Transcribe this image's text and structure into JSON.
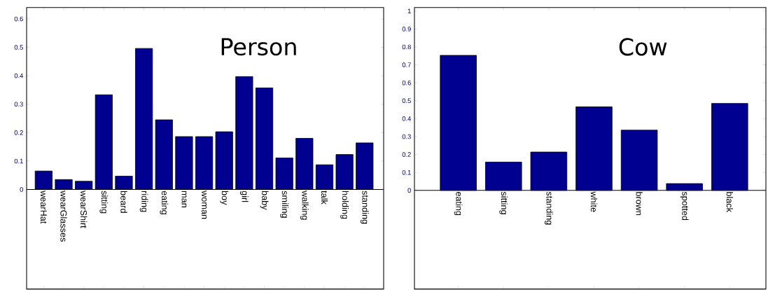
{
  "chart_data": [
    {
      "type": "bar",
      "title": "Person",
      "categories": [
        "wearHat",
        "wearGlasses",
        "wearShirt",
        "sitting",
        "beard",
        "riding",
        "eating",
        "man",
        "woman",
        "boy",
        "girl",
        "baby",
        "smiling",
        "walking",
        "talk",
        "holding",
        "standing"
      ],
      "values": [
        0.065,
        0.035,
        0.029,
        0.333,
        0.047,
        0.496,
        0.245,
        0.186,
        0.186,
        0.203,
        0.397,
        0.357,
        0.111,
        0.18,
        0.087,
        0.123,
        0.164
      ],
      "color": "#000090",
      "ylim": [
        -0.35,
        0.64
      ],
      "yticks": [
        0,
        0.1,
        0.2,
        0.3,
        0.4,
        0.5,
        0.6
      ]
    },
    {
      "type": "bar",
      "title": "Cow",
      "categories": [
        "eating",
        "sitting",
        "standing",
        "white",
        "brown",
        "spotted",
        "black"
      ],
      "values": [
        0.753,
        0.158,
        0.214,
        0.466,
        0.336,
        0.038,
        0.485
      ],
      "color": "#000090",
      "ylim": [
        -0.55,
        1.02
      ],
      "yticks": [
        0,
        0.1,
        0.2,
        0.3,
        0.4,
        0.5,
        0.6,
        0.7,
        0.8,
        0.9,
        1
      ]
    }
  ]
}
